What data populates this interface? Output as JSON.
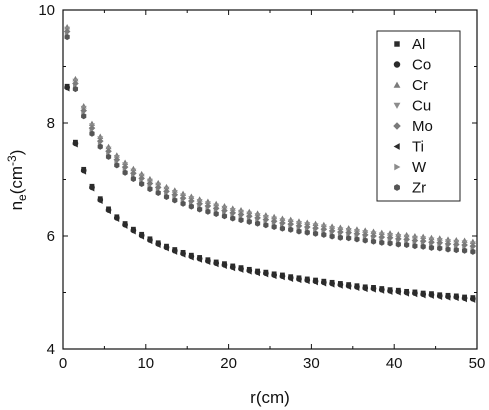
{
  "chart_data": {
    "type": "scatter",
    "title": "",
    "xlabel": "r(cm)",
    "ylabel": {
      "base": "n",
      "subscript": "e",
      "unit_open": "(cm",
      "superscript": "-3",
      "unit_close": ")"
    },
    "xlim": [
      0,
      50
    ],
    "ylim": [
      4,
      10
    ],
    "xticks": [
      "0",
      "10",
      "20",
      "30",
      "40",
      "50"
    ],
    "yticks": [
      "4",
      "6",
      "8",
      "10"
    ],
    "grid": false,
    "legend_position": "top-right",
    "x": [
      0.5,
      1.5,
      2.5,
      3.5,
      4.5,
      5.5,
      6.5,
      7.5,
      8.5,
      9.5,
      10.5,
      11.5,
      12.5,
      13.5,
      14.5,
      15.5,
      16.5,
      17.5,
      18.5,
      19.5,
      20.5,
      21.5,
      22.5,
      23.5,
      24.5,
      25.5,
      26.5,
      27.5,
      28.5,
      29.5,
      30.5,
      31.5,
      32.5,
      33.5,
      34.5,
      35.5,
      36.5,
      37.5,
      38.5,
      39.5,
      40.5,
      41.5,
      42.5,
      43.5,
      44.5,
      45.5,
      46.5,
      47.5,
      48.5,
      49.5
    ],
    "series": [
      {
        "name": "Al",
        "marker": "square",
        "color": "#2b2b2b",
        "values": [
          8.65,
          7.66,
          7.18,
          6.88,
          6.66,
          6.48,
          6.34,
          6.22,
          6.12,
          6.03,
          5.95,
          5.88,
          5.82,
          5.76,
          5.71,
          5.66,
          5.62,
          5.58,
          5.54,
          5.51,
          5.47,
          5.44,
          5.41,
          5.38,
          5.36,
          5.33,
          5.31,
          5.28,
          5.26,
          5.24,
          5.22,
          5.2,
          5.18,
          5.16,
          5.14,
          5.12,
          5.1,
          5.09,
          5.07,
          5.05,
          5.04,
          5.02,
          5.01,
          4.99,
          4.98,
          4.96,
          4.95,
          4.94,
          4.92,
          4.91
        ]
      },
      {
        "name": "Co",
        "marker": "circle",
        "color": "#2b2b2b",
        "values": [
          8.63,
          7.64,
          7.16,
          6.86,
          6.64,
          6.46,
          6.32,
          6.2,
          6.1,
          6.01,
          5.93,
          5.86,
          5.8,
          5.74,
          5.69,
          5.64,
          5.6,
          5.56,
          5.52,
          5.49,
          5.45,
          5.42,
          5.39,
          5.36,
          5.34,
          5.31,
          5.29,
          5.26,
          5.24,
          5.22,
          5.2,
          5.18,
          5.16,
          5.14,
          5.12,
          5.1,
          5.08,
          5.07,
          5.05,
          5.03,
          5.02,
          5.0,
          4.99,
          4.97,
          4.96,
          4.94,
          4.93,
          4.92,
          4.9,
          4.89
        ]
      },
      {
        "name": "Cr",
        "marker": "triangle-up",
        "color": "#7a7a7a",
        "values": [
          9.7,
          8.78,
          8.3,
          7.99,
          7.76,
          7.58,
          7.43,
          7.3,
          7.19,
          7.1,
          7.01,
          6.94,
          6.87,
          6.81,
          6.75,
          6.7,
          6.65,
          6.61,
          6.57,
          6.53,
          6.49,
          6.46,
          6.43,
          6.4,
          6.37,
          6.34,
          6.31,
          6.29,
          6.26,
          6.24,
          6.22,
          6.2,
          6.17,
          6.15,
          6.14,
          6.12,
          6.1,
          6.08,
          6.06,
          6.05,
          6.03,
          6.02,
          6.0,
          5.99,
          5.97,
          5.96,
          5.94,
          5.93,
          5.92,
          5.9
        ]
      },
      {
        "name": "Cu",
        "marker": "triangle-down",
        "color": "#8c8c8c",
        "values": [
          9.66,
          8.74,
          8.26,
          7.95,
          7.72,
          7.54,
          7.39,
          7.26,
          7.15,
          7.06,
          6.97,
          6.9,
          6.83,
          6.77,
          6.71,
          6.66,
          6.61,
          6.57,
          6.53,
          6.49,
          6.45,
          6.42,
          6.39,
          6.36,
          6.33,
          6.3,
          6.27,
          6.25,
          6.22,
          6.2,
          6.18,
          6.16,
          6.13,
          6.11,
          6.1,
          6.08,
          6.06,
          6.04,
          6.02,
          6.01,
          5.99,
          5.98,
          5.96,
          5.95,
          5.93,
          5.92,
          5.9,
          5.89,
          5.88,
          5.86
        ]
      },
      {
        "name": "Mo",
        "marker": "diamond",
        "color": "#7a7a7a",
        "values": [
          9.62,
          8.7,
          8.22,
          7.91,
          7.68,
          7.5,
          7.35,
          7.22,
          7.11,
          7.02,
          6.93,
          6.86,
          6.79,
          6.73,
          6.67,
          6.62,
          6.57,
          6.53,
          6.49,
          6.45,
          6.41,
          6.38,
          6.35,
          6.32,
          6.29,
          6.26,
          6.23,
          6.21,
          6.18,
          6.16,
          6.14,
          6.12,
          6.09,
          6.07,
          6.06,
          6.04,
          6.02,
          6.0,
          5.98,
          5.97,
          5.95,
          5.94,
          5.92,
          5.91,
          5.89,
          5.88,
          5.86,
          5.85,
          5.84,
          5.82
        ]
      },
      {
        "name": "Ti",
        "marker": "triangle-left",
        "color": "#2b2b2b",
        "values": [
          8.61,
          7.62,
          7.14,
          6.84,
          6.62,
          6.44,
          6.3,
          6.18,
          6.08,
          5.99,
          5.91,
          5.84,
          5.78,
          5.72,
          5.67,
          5.62,
          5.58,
          5.54,
          5.5,
          5.47,
          5.43,
          5.4,
          5.37,
          5.34,
          5.32,
          5.29,
          5.27,
          5.24,
          5.22,
          5.2,
          5.18,
          5.16,
          5.14,
          5.12,
          5.1,
          5.08,
          5.06,
          5.05,
          5.03,
          5.01,
          5.0,
          4.98,
          4.97,
          4.95,
          4.94,
          4.92,
          4.91,
          4.9,
          4.88,
          4.87
        ]
      },
      {
        "name": "W",
        "marker": "triangle-right",
        "color": "#8c8c8c",
        "values": [
          9.55,
          8.63,
          8.15,
          7.84,
          7.61,
          7.43,
          7.28,
          7.15,
          7.04,
          6.95,
          6.86,
          6.79,
          6.72,
          6.66,
          6.6,
          6.55,
          6.5,
          6.46,
          6.42,
          6.38,
          6.34,
          6.31,
          6.28,
          6.25,
          6.22,
          6.19,
          6.16,
          6.14,
          6.11,
          6.09,
          6.07,
          6.05,
          6.02,
          6.0,
          5.99,
          5.97,
          5.95,
          5.93,
          5.91,
          5.9,
          5.88,
          5.87,
          5.85,
          5.84,
          5.82,
          5.81,
          5.79,
          5.78,
          5.77,
          5.75
        ]
      },
      {
        "name": "Zr",
        "marker": "hexagon",
        "color": "#555555",
        "values": [
          9.52,
          8.6,
          8.12,
          7.81,
          7.58,
          7.4,
          7.25,
          7.12,
          7.01,
          6.92,
          6.83,
          6.76,
          6.69,
          6.63,
          6.57,
          6.52,
          6.47,
          6.43,
          6.39,
          6.35,
          6.31,
          6.28,
          6.25,
          6.22,
          6.19,
          6.16,
          6.13,
          6.11,
          6.08,
          6.06,
          6.04,
          6.02,
          5.99,
          5.97,
          5.96,
          5.94,
          5.92,
          5.9,
          5.88,
          5.87,
          5.85,
          5.84,
          5.82,
          5.81,
          5.79,
          5.78,
          5.76,
          5.75,
          5.74,
          5.72
        ]
      }
    ]
  }
}
